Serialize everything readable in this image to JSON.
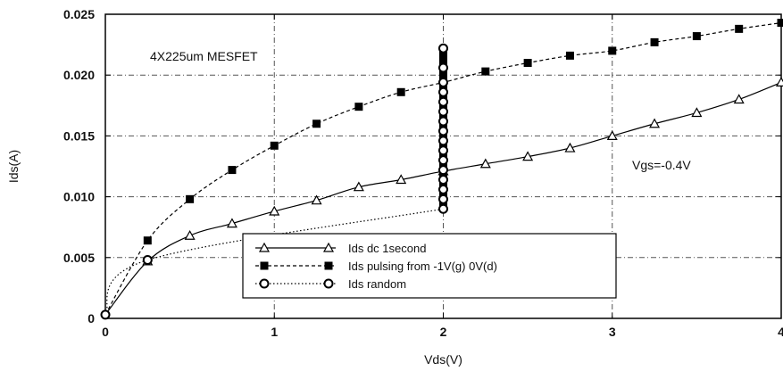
{
  "chart_data": {
    "type": "line",
    "title": "",
    "xlabel": "Vds(V)",
    "ylabel": "Ids(A)",
    "xlim": [
      0,
      4
    ],
    "ylim": [
      0,
      0.025
    ],
    "xticks": [
      "0",
      "1",
      "2",
      "3",
      "4"
    ],
    "yticks": [
      "0",
      "0.005",
      "0.010",
      "0.015",
      "0.020",
      "0.025"
    ],
    "grid": true,
    "legend_position": "bottom-center",
    "annotations": [
      "4X225um MESFET",
      "Vgs=-0.4V"
    ],
    "series": [
      {
        "name": "Ids dc 1second",
        "style": "solid",
        "marker": "triangle-open",
        "x": [
          0,
          0.25,
          0.5,
          0.75,
          1.0,
          1.25,
          1.5,
          1.75,
          2.0,
          2.25,
          2.5,
          2.75,
          3.0,
          3.25,
          3.5,
          3.75,
          4.0
        ],
        "y": [
          0.0003,
          0.0047,
          0.0068,
          0.0078,
          0.0088,
          0.0097,
          0.0108,
          0.0114,
          0.0121,
          0.0127,
          0.0133,
          0.014,
          0.015,
          0.016,
          0.0169,
          0.018,
          0.0194
        ]
      },
      {
        "name": "Ids pulsing from -1V(g) 0V(d)",
        "style": "dashed",
        "marker": "square-filled",
        "x": [
          0,
          0.25,
          0.5,
          0.75,
          1.0,
          1.25,
          1.5,
          1.75,
          2.0,
          2.25,
          2.5,
          2.75,
          3.0,
          3.25,
          3.5,
          3.75,
          4.0
        ],
        "y": [
          0.0003,
          0.0064,
          0.0098,
          0.0122,
          0.0142,
          0.016,
          0.0174,
          0.0186,
          0.0194,
          0.0203,
          0.021,
          0.0216,
          0.022,
          0.0227,
          0.0232,
          0.0238,
          0.0243
        ]
      },
      {
        "name": "Ids random",
        "style": "dotted",
        "marker": "circle-open",
        "x": [
          0,
          0.25,
          2.0,
          2.0,
          2.0,
          2.0,
          2.0,
          2.0,
          2.0,
          2.0,
          2.0,
          2.0,
          2.0,
          2.0,
          2.0,
          2.0,
          2.0,
          2.0
        ],
        "y": [
          0.0003,
          0.0048,
          0.009,
          0.0098,
          0.0106,
          0.0114,
          0.0122,
          0.013,
          0.0138,
          0.0146,
          0.0154,
          0.0162,
          0.017,
          0.0178,
          0.0186,
          0.0194,
          0.0206,
          0.0222
        ]
      }
    ]
  }
}
